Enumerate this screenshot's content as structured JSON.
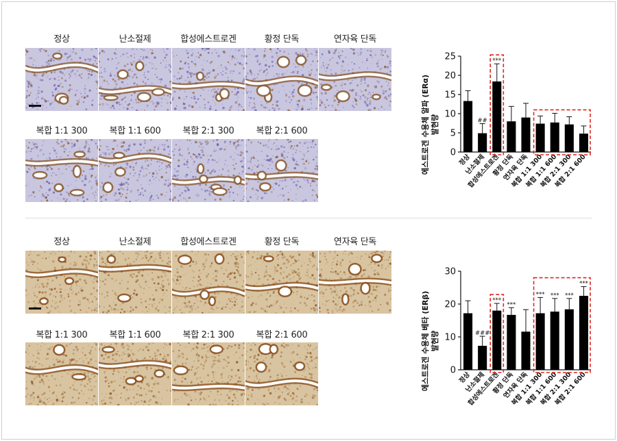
{
  "panels": [
    {
      "id": "era",
      "image_labels_row1": [
        "정상",
        "난소절제",
        "합성에스트로겐",
        "황정 단독",
        "연자육 단독"
      ],
      "image_labels_row2": [
        "복합 1:1 300",
        "복합 1:1 600",
        "복합 2:1 300",
        "복합 2:1 600"
      ],
      "stain_colors": {
        "background": "#c9c6e0",
        "tissue": "#6a5fa8",
        "brown": "#8b5a2b",
        "lumen": "#ffffff"
      }
    },
    {
      "id": "erb",
      "image_labels_row1": [
        "정상",
        "난소절제",
        "합성에스트로겐",
        "황정 단독",
        "연자육 단독"
      ],
      "image_labels_row2": [
        "복합 1:1 300",
        "복합 1:1 600",
        "복합 2:1 300",
        "복합 2:1 600"
      ],
      "stain_colors": {
        "background": "#d8c4a0",
        "tissue": "#a97a46",
        "brown": "#8a4e1c",
        "lumen": "#ffffff"
      }
    }
  ],
  "chart_data": [
    {
      "type": "bar",
      "ylabel_line1": "에스트로겐 수용체 알파 (ERα)",
      "ylabel_line2": "발현량",
      "ylim": [
        0,
        25
      ],
      "yticks": [
        0,
        5,
        10,
        15,
        20,
        25
      ],
      "categories": [
        "정상",
        "난소절제",
        "합성에스트로겐",
        "황정 단독",
        "연자육 단독",
        "복합 1:1 300",
        "복합 1:1 600",
        "복합 2:1 300",
        "복합 2:1 600"
      ],
      "values": [
        13.3,
        4.9,
        18.4,
        8.0,
        9.0,
        7.4,
        7.7,
        7.2,
        4.8
      ],
      "errors": [
        2.7,
        2.5,
        4.6,
        3.9,
        3.7,
        2.0,
        2.4,
        2.0,
        2.0
      ],
      "annotations": [
        "",
        "##",
        "***",
        "",
        "",
        "",
        "",
        "",
        ""
      ],
      "bar_color": "#000000",
      "highlight_color": "#e0231b",
      "highlight_groups": [
        [
          2,
          2
        ],
        [
          5,
          8
        ]
      ]
    },
    {
      "type": "bar",
      "ylabel_line1": "에스트로겐 수용체 베타 (ERβ)",
      "ylabel_line2": "발현량",
      "ylim": [
        0,
        30
      ],
      "yticks": [
        0,
        10,
        20,
        30
      ],
      "categories": [
        "정상",
        "난소절제",
        "합성에스트로겐",
        "황정 단독",
        "연자육 단독",
        "복합 1:1 300",
        "복합 1:1 600",
        "복합 2:1 300",
        "복합 2:1 600"
      ],
      "values": [
        17.2,
        7.3,
        18.0,
        16.7,
        11.6,
        17.2,
        17.7,
        18.4,
        22.5
      ],
      "errors": [
        3.8,
        2.9,
        2.2,
        2.2,
        6.7,
        4.8,
        4.0,
        3.3,
        2.8
      ],
      "annotations": [
        "",
        "###",
        "***",
        "***",
        "",
        "***",
        "***",
        "***",
        "***"
      ],
      "bar_color": "#000000",
      "highlight_color": "#e0231b",
      "highlight_groups": [
        [
          2,
          2
        ],
        [
          5,
          8
        ]
      ]
    }
  ]
}
